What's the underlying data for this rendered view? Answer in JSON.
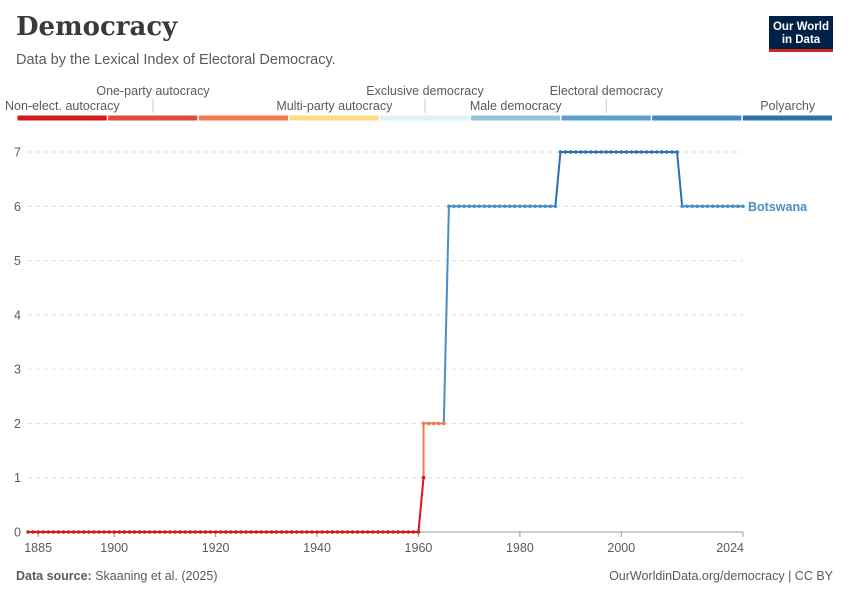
{
  "header": {
    "title": "Democracy",
    "subtitle": "Data by the Lexical Index of Electoral Democracy."
  },
  "logo": {
    "line1": "Our World",
    "line2": "in Data"
  },
  "footer": {
    "source_label": "Data source:",
    "source_text": "Skaaning et al. (2025)",
    "link_text": "OurWorldinData.org/democracy | CC BY"
  },
  "legend": {
    "categories": [
      {
        "label": "Non-elect. autocracy",
        "color": "#d7191c",
        "row": 2
      },
      {
        "label": "One-party autocracy",
        "color": "#e5493a",
        "row": 1
      },
      {
        "label": "",
        "color": "#f07a4a",
        "row": 2
      },
      {
        "label": "Multi-party autocracy",
        "color": "#fddb83",
        "row": 2
      },
      {
        "label": "Exclusive democracy",
        "color": "#e0f0f7",
        "row": 1
      },
      {
        "label": "Male democracy",
        "color": "#92c3d7",
        "row": 2
      },
      {
        "label": "Electoral democracy",
        "color": "#5ba0cd",
        "row": 1
      },
      {
        "label": "",
        "color": "#4389c2",
        "row": 2
      },
      {
        "label": "Polyarchy",
        "color": "#2c70b0",
        "row": 2
      }
    ]
  },
  "chart_data": {
    "type": "line",
    "title": "Democracy",
    "xlim": [
      1883,
      2024
    ],
    "ylim": [
      0,
      7
    ],
    "x_ticks": [
      1885,
      1900,
      1920,
      1940,
      1960,
      1980,
      2000,
      2024
    ],
    "y_ticks": [
      0,
      1,
      2,
      3,
      4,
      5,
      6,
      7
    ],
    "grid": "horizontal dashed",
    "series": [
      {
        "name": "Botswana",
        "color": "#4a8fc4",
        "points": [
          {
            "x": 1883,
            "y": 0
          },
          {
            "x": 1884,
            "y": 0
          },
          {
            "x": 1885,
            "y": 0
          },
          {
            "x": 1886,
            "y": 0
          },
          {
            "x": 1887,
            "y": 0
          },
          {
            "x": 1888,
            "y": 0
          },
          {
            "x": 1889,
            "y": 0
          },
          {
            "x": 1890,
            "y": 0
          },
          {
            "x": 1891,
            "y": 0
          },
          {
            "x": 1892,
            "y": 0
          },
          {
            "x": 1893,
            "y": 0
          },
          {
            "x": 1894,
            "y": 0
          },
          {
            "x": 1895,
            "y": 0
          },
          {
            "x": 1896,
            "y": 0
          },
          {
            "x": 1897,
            "y": 0
          },
          {
            "x": 1898,
            "y": 0
          },
          {
            "x": 1899,
            "y": 0
          },
          {
            "x": 1900,
            "y": 0
          },
          {
            "x": 1901,
            "y": 0
          },
          {
            "x": 1902,
            "y": 0
          },
          {
            "x": 1903,
            "y": 0
          },
          {
            "x": 1904,
            "y": 0
          },
          {
            "x": 1905,
            "y": 0
          },
          {
            "x": 1906,
            "y": 0
          },
          {
            "x": 1907,
            "y": 0
          },
          {
            "x": 1908,
            "y": 0
          },
          {
            "x": 1909,
            "y": 0
          },
          {
            "x": 1910,
            "y": 0
          },
          {
            "x": 1911,
            "y": 0
          },
          {
            "x": 1912,
            "y": 0
          },
          {
            "x": 1913,
            "y": 0
          },
          {
            "x": 1914,
            "y": 0
          },
          {
            "x": 1915,
            "y": 0
          },
          {
            "x": 1916,
            "y": 0
          },
          {
            "x": 1917,
            "y": 0
          },
          {
            "x": 1918,
            "y": 0
          },
          {
            "x": 1919,
            "y": 0
          },
          {
            "x": 1920,
            "y": 0
          },
          {
            "x": 1921,
            "y": 0
          },
          {
            "x": 1922,
            "y": 0
          },
          {
            "x": 1923,
            "y": 0
          },
          {
            "x": 1924,
            "y": 0
          },
          {
            "x": 1925,
            "y": 0
          },
          {
            "x": 1926,
            "y": 0
          },
          {
            "x": 1927,
            "y": 0
          },
          {
            "x": 1928,
            "y": 0
          },
          {
            "x": 1929,
            "y": 0
          },
          {
            "x": 1930,
            "y": 0
          },
          {
            "x": 1931,
            "y": 0
          },
          {
            "x": 1932,
            "y": 0
          },
          {
            "x": 1933,
            "y": 0
          },
          {
            "x": 1934,
            "y": 0
          },
          {
            "x": 1935,
            "y": 0
          },
          {
            "x": 1936,
            "y": 0
          },
          {
            "x": 1937,
            "y": 0
          },
          {
            "x": 1938,
            "y": 0
          },
          {
            "x": 1939,
            "y": 0
          },
          {
            "x": 1940,
            "y": 0
          },
          {
            "x": 1941,
            "y": 0
          },
          {
            "x": 1942,
            "y": 0
          },
          {
            "x": 1943,
            "y": 0
          },
          {
            "x": 1944,
            "y": 0
          },
          {
            "x": 1945,
            "y": 0
          },
          {
            "x": 1946,
            "y": 0
          },
          {
            "x": 1947,
            "y": 0
          },
          {
            "x": 1948,
            "y": 0
          },
          {
            "x": 1949,
            "y": 0
          },
          {
            "x": 1950,
            "y": 0
          },
          {
            "x": 1951,
            "y": 0
          },
          {
            "x": 1952,
            "y": 0
          },
          {
            "x": 1953,
            "y": 0
          },
          {
            "x": 1954,
            "y": 0
          },
          {
            "x": 1955,
            "y": 0
          },
          {
            "x": 1956,
            "y": 0
          },
          {
            "x": 1957,
            "y": 0
          },
          {
            "x": 1958,
            "y": 0
          },
          {
            "x": 1959,
            "y": 0
          },
          {
            "x": 1960,
            "y": 0
          },
          {
            "x": 1961,
            "y": 1
          },
          {
            "x": 1961,
            "y": 2
          },
          {
            "x": 1962,
            "y": 2
          },
          {
            "x": 1963,
            "y": 2
          },
          {
            "x": 1964,
            "y": 2
          },
          {
            "x": 1965,
            "y": 2
          },
          {
            "x": 1966,
            "y": 6
          },
          {
            "x": 1967,
            "y": 6
          },
          {
            "x": 1968,
            "y": 6
          },
          {
            "x": 1969,
            "y": 6
          },
          {
            "x": 1970,
            "y": 6
          },
          {
            "x": 1971,
            "y": 6
          },
          {
            "x": 1972,
            "y": 6
          },
          {
            "x": 1973,
            "y": 6
          },
          {
            "x": 1974,
            "y": 6
          },
          {
            "x": 1975,
            "y": 6
          },
          {
            "x": 1976,
            "y": 6
          },
          {
            "x": 1977,
            "y": 6
          },
          {
            "x": 1978,
            "y": 6
          },
          {
            "x": 1979,
            "y": 6
          },
          {
            "x": 1980,
            "y": 6
          },
          {
            "x": 1981,
            "y": 6
          },
          {
            "x": 1982,
            "y": 6
          },
          {
            "x": 1983,
            "y": 6
          },
          {
            "x": 1984,
            "y": 6
          },
          {
            "x": 1985,
            "y": 6
          },
          {
            "x": 1986,
            "y": 6
          },
          {
            "x": 1987,
            "y": 6
          },
          {
            "x": 1988,
            "y": 7
          },
          {
            "x": 1989,
            "y": 7
          },
          {
            "x": 1990,
            "y": 7
          },
          {
            "x": 1991,
            "y": 7
          },
          {
            "x": 1992,
            "y": 7
          },
          {
            "x": 1993,
            "y": 7
          },
          {
            "x": 1994,
            "y": 7
          },
          {
            "x": 1995,
            "y": 7
          },
          {
            "x": 1996,
            "y": 7
          },
          {
            "x": 1997,
            "y": 7
          },
          {
            "x": 1998,
            "y": 7
          },
          {
            "x": 1999,
            "y": 7
          },
          {
            "x": 2000,
            "y": 7
          },
          {
            "x": 2001,
            "y": 7
          },
          {
            "x": 2002,
            "y": 7
          },
          {
            "x": 2003,
            "y": 7
          },
          {
            "x": 2004,
            "y": 7
          },
          {
            "x": 2005,
            "y": 7
          },
          {
            "x": 2006,
            "y": 7
          },
          {
            "x": 2007,
            "y": 7
          },
          {
            "x": 2008,
            "y": 7
          },
          {
            "x": 2009,
            "y": 7
          },
          {
            "x": 2010,
            "y": 7
          },
          {
            "x": 2011,
            "y": 7
          },
          {
            "x": 2012,
            "y": 6
          },
          {
            "x": 2013,
            "y": 6
          },
          {
            "x": 2014,
            "y": 6
          },
          {
            "x": 2015,
            "y": 6
          },
          {
            "x": 2016,
            "y": 6
          },
          {
            "x": 2017,
            "y": 6
          },
          {
            "x": 2018,
            "y": 6
          },
          {
            "x": 2019,
            "y": 6
          },
          {
            "x": 2020,
            "y": 6
          },
          {
            "x": 2021,
            "y": 6
          },
          {
            "x": 2022,
            "y": 6
          },
          {
            "x": 2023,
            "y": 6
          },
          {
            "x": 2024,
            "y": 6
          }
        ]
      }
    ],
    "value_colors": [
      "#d7191c",
      "#d7191c",
      "#f07a4a",
      "#f07a4a",
      "#f07a4a",
      "#92c3d7",
      "#4a8fc4",
      "#2c70b0"
    ]
  }
}
